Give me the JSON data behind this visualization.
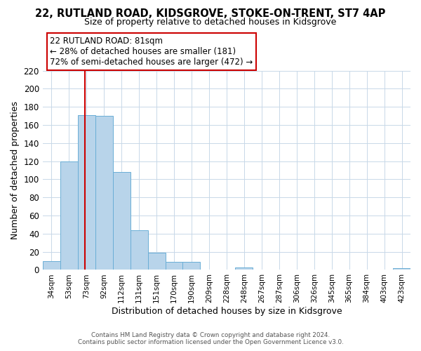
{
  "title": "22, RUTLAND ROAD, KIDSGROVE, STOKE-ON-TRENT, ST7 4AP",
  "subtitle": "Size of property relative to detached houses in Kidsgrove",
  "xlabel": "Distribution of detached houses by size in Kidsgrove",
  "ylabel": "Number of detached properties",
  "bar_labels": [
    "34sqm",
    "53sqm",
    "73sqm",
    "92sqm",
    "112sqm",
    "131sqm",
    "151sqm",
    "170sqm",
    "190sqm",
    "209sqm",
    "228sqm",
    "248sqm",
    "267sqm",
    "287sqm",
    "306sqm",
    "326sqm",
    "345sqm",
    "365sqm",
    "384sqm",
    "403sqm",
    "423sqm"
  ],
  "bar_values": [
    10,
    120,
    171,
    170,
    108,
    44,
    19,
    9,
    9,
    0,
    0,
    3,
    0,
    0,
    0,
    0,
    0,
    0,
    0,
    0,
    2
  ],
  "bar_color": "#b8d4ea",
  "bar_edge_color": "#6aaed6",
  "ylim": [
    0,
    220
  ],
  "yticks": [
    0,
    20,
    40,
    60,
    80,
    100,
    120,
    140,
    160,
    180,
    200,
    220
  ],
  "red_line_color": "#cc0000",
  "annotation_title": "22 RUTLAND ROAD: 81sqm",
  "annotation_line1": "← 28% of detached houses are smaller (181)",
  "annotation_line2": "72% of semi-detached houses are larger (472) →",
  "footer_line1": "Contains HM Land Registry data © Crown copyright and database right 2024.",
  "footer_line2": "Contains public sector information licensed under the Open Government Licence v3.0.",
  "background_color": "#ffffff",
  "grid_color": "#c8d8e8"
}
